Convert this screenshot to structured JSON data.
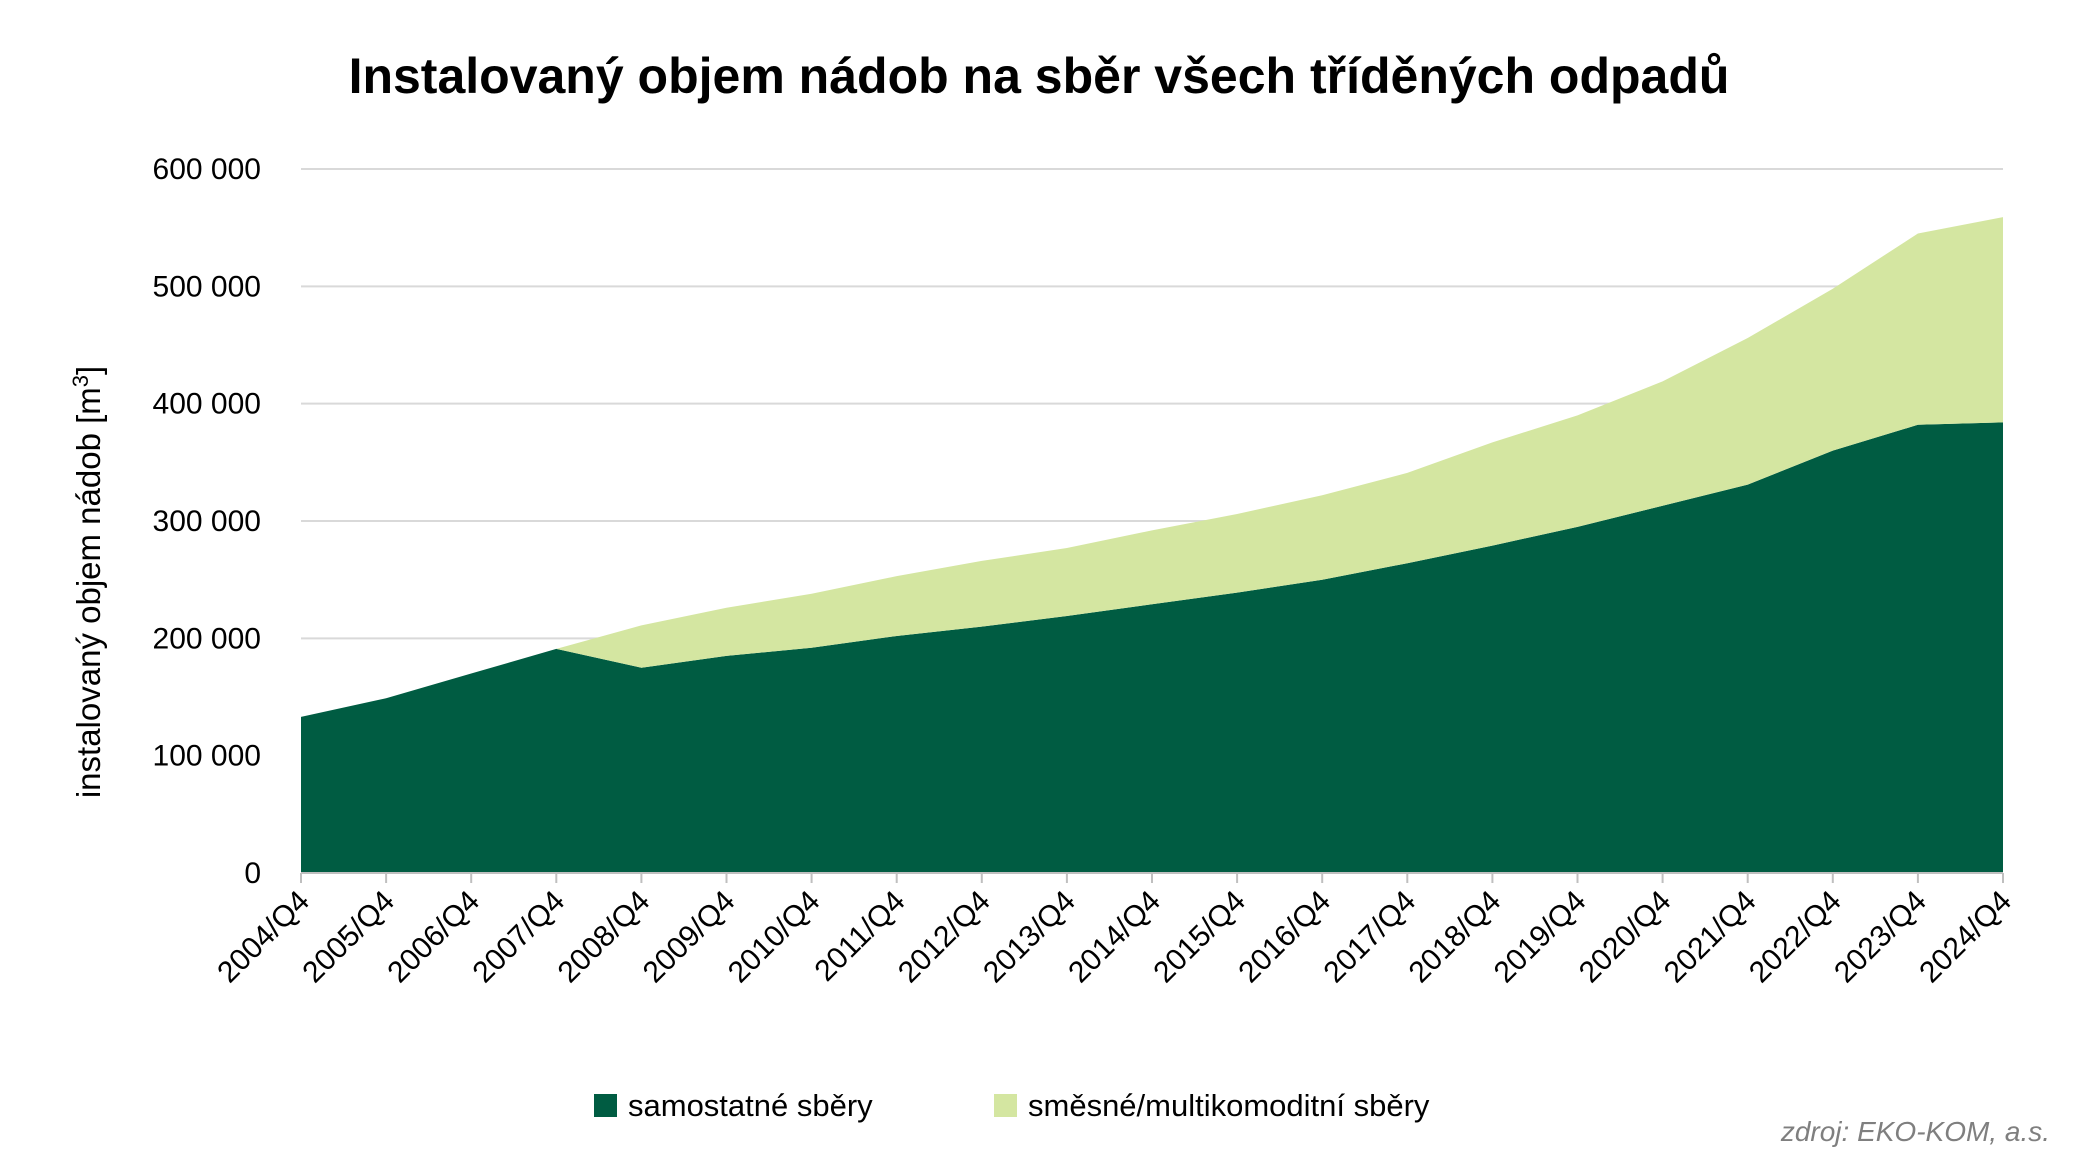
{
  "chart_data": {
    "type": "area",
    "stacked": true,
    "title": "Instalovaný objem nádob na sběr všech tříděných odpadů",
    "ylabel": "instalovaný objem nádob [m",
    "ylabel_sup": "3",
    "ylabel_end": "]",
    "xlabel": "",
    "ylim": [
      0,
      600000
    ],
    "yticks": [
      0,
      100000,
      200000,
      300000,
      400000,
      500000,
      600000
    ],
    "ytick_labels": [
      "0",
      "100 000",
      "200 000",
      "300 000",
      "400 000",
      "500 000",
      "600 000"
    ],
    "grid": true,
    "legend_position": "bottom",
    "categories": [
      "2004/Q4",
      "2005/Q4",
      "2006/Q4",
      "2007/Q4",
      "2008/Q4",
      "2009/Q4",
      "2010/Q4",
      "2011/Q4",
      "2012/Q4",
      "2013/Q4",
      "2014/Q4",
      "2015/Q4",
      "2016/Q4",
      "2017/Q4",
      "2018/Q4",
      "2019/Q4",
      "2020/Q4",
      "2021/Q4",
      "2022/Q4",
      "2023/Q4",
      "2024/Q4"
    ],
    "series": [
      {
        "name": "samostatné sběry",
        "color": "#005c42",
        "values": [
          133000,
          149000,
          170000,
          191000,
          175000,
          185000,
          192000,
          202000,
          210000,
          219000,
          229000,
          239000,
          250000,
          264000,
          279000,
          295000,
          313000,
          331000,
          360000,
          382000,
          384000
        ]
      },
      {
        "name": "směsné/multikomoditní sběry",
        "color": "#d4e6a1",
        "values": [
          0,
          0,
          0,
          0,
          36000,
          41000,
          46000,
          51000,
          56000,
          58000,
          63000,
          67000,
          72000,
          77000,
          88000,
          95000,
          106000,
          125000,
          138000,
          163000,
          175000
        ]
      }
    ]
  },
  "source_note": "zdroj: EKO-KOM, a.s."
}
